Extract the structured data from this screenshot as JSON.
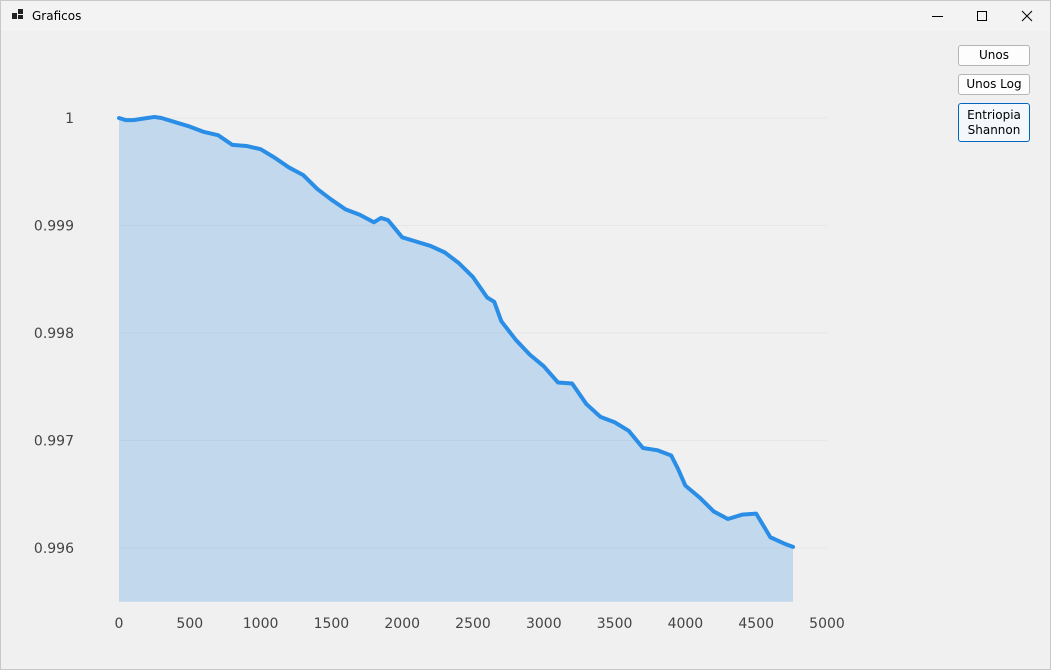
{
  "window": {
    "title": "Graficos"
  },
  "buttons": [
    "Unos",
    "Unos Log",
    "Entriopia Shannon"
  ],
  "chart_data": {
    "type": "area",
    "x": [
      0,
      50,
      100,
      200,
      250,
      300,
      400,
      500,
      600,
      700,
      800,
      900,
      1000,
      1100,
      1200,
      1300,
      1400,
      1500,
      1600,
      1700,
      1800,
      1850,
      1900,
      2000,
      2100,
      2200,
      2300,
      2400,
      2500,
      2600,
      2650,
      2700,
      2800,
      2900,
      3000,
      3100,
      3200,
      3300,
      3400,
      3500,
      3600,
      3700,
      3800,
      3900,
      3950,
      4000,
      4100,
      4200,
      4300,
      4400,
      4500,
      4600,
      4700,
      4760
    ],
    "series": [
      {
        "color": "#2a8de6",
        "values": [
          1.0,
          0.99998,
          0.99998,
          1.0,
          1.00001,
          1.0,
          0.99996,
          0.99992,
          0.99987,
          0.99984,
          0.99975,
          0.99974,
          0.99971,
          0.99963,
          0.99954,
          0.99947,
          0.99934,
          0.99924,
          0.99915,
          0.9991,
          0.99903,
          0.99907,
          0.99905,
          0.99889,
          0.99885,
          0.99881,
          0.99875,
          0.99865,
          0.99852,
          0.99833,
          0.99829,
          0.99811,
          0.99794,
          0.9978,
          0.99769,
          0.99754,
          0.99753,
          0.99734,
          0.99722,
          0.99717,
          0.99709,
          0.99693,
          0.99691,
          0.99686,
          0.99673,
          0.99658,
          0.99647,
          0.99634,
          0.99627,
          0.99631,
          0.99632,
          0.9961,
          0.99604,
          0.99601
        ]
      }
    ],
    "xlim": [
      0,
      5000
    ],
    "xticks": [
      0,
      500,
      1000,
      1500,
      2000,
      2500,
      3000,
      3500,
      4000,
      4500,
      5000
    ],
    "ylim": [
      0.9955,
      1.0001
    ],
    "yticks": [
      0.996,
      0.997,
      0.998,
      0.999,
      1
    ],
    "grid": true
  }
}
